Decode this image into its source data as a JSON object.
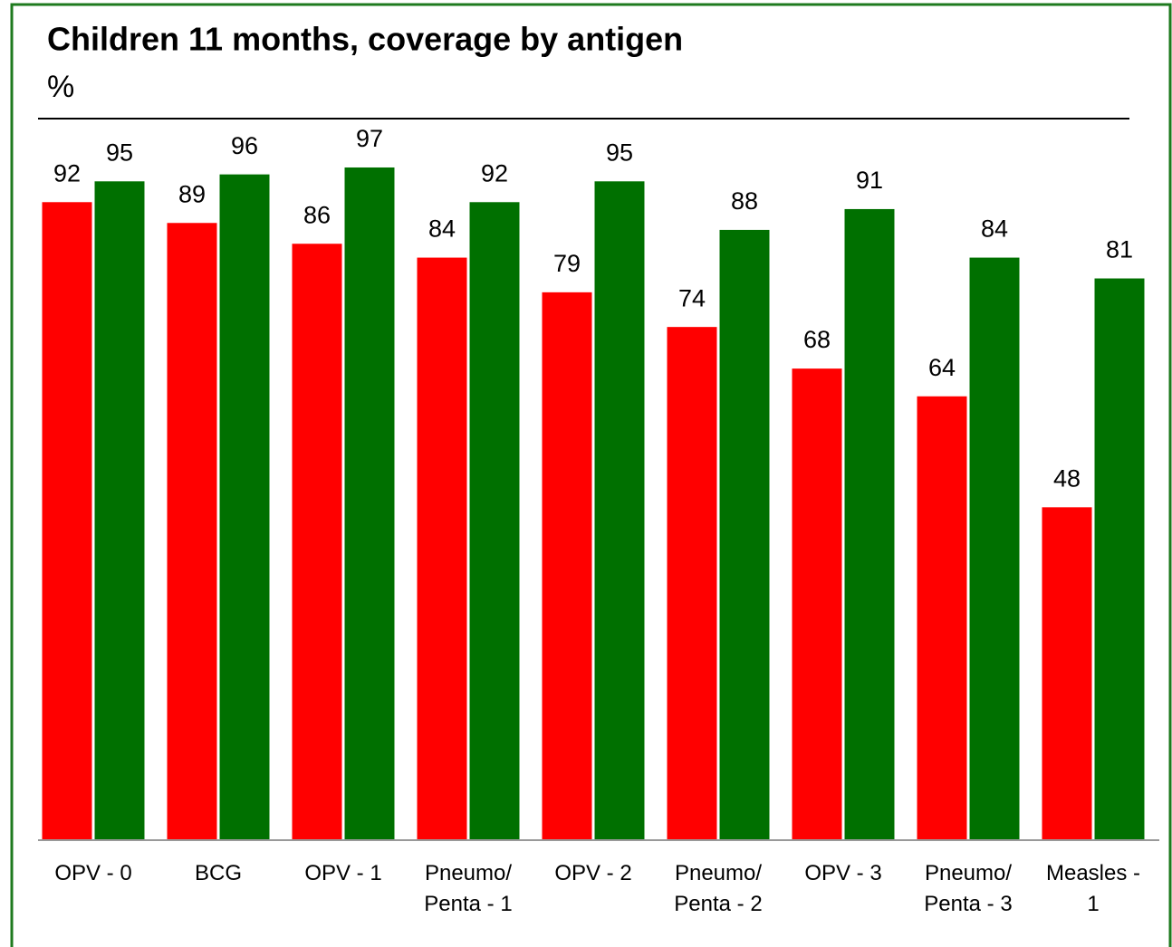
{
  "chart_data": {
    "type": "bar",
    "title": "Children 11 months, coverage by antigen",
    "subtitle": "%",
    "categories": [
      "OPV - 0",
      "BCG",
      "OPV - 1",
      "Pneumo/\nPenta - 1",
      "OPV - 2",
      "Pneumo/\nPenta - 2",
      "OPV - 3",
      "Pneumo/\nPenta - 3",
      "Measles -\n1"
    ],
    "series": [
      {
        "color": "#ff0000",
        "values": [
          92,
          89,
          86,
          84,
          79,
          74,
          68,
          64,
          48
        ]
      },
      {
        "color": "#007000",
        "values": [
          95,
          96,
          97,
          92,
          95,
          88,
          91,
          84,
          81
        ]
      }
    ],
    "ylim": [
      0,
      100
    ]
  }
}
